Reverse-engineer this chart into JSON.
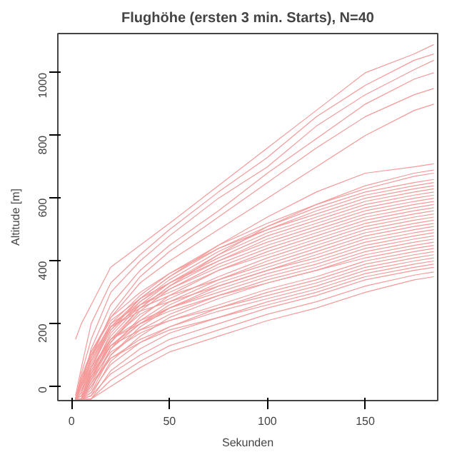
{
  "chart_data": {
    "type": "line",
    "title": "Flughöhe (ersten 3 min. Starts), N=40",
    "xlabel": "Sekunden",
    "ylabel": "Altitude [m]",
    "x": [
      2,
      5,
      10,
      20,
      35,
      50,
      75,
      100,
      125,
      150,
      175,
      185
    ],
    "xlim": [
      -7,
      187
    ],
    "ylim": [
      -45,
      1125
    ],
    "xticks": [
      0,
      50,
      100,
      150
    ],
    "yticks": [
      0,
      200,
      400,
      600,
      800,
      1000
    ],
    "grid": false,
    "line_style": "solid",
    "series": [
      {
        "color": "#f59a9a",
        "values": [
          150,
          200,
          260,
          380,
          450,
          520,
          640,
          760,
          880,
          1000,
          1060,
          1090
        ]
      },
      {
        "color": "#f59a9a",
        "values": [
          -30,
          60,
          200,
          330,
          420,
          500,
          620,
          730,
          860,
          960,
          1040,
          1060
        ]
      },
      {
        "color": "#f59a9a",
        "values": [
          -40,
          40,
          150,
          300,
          400,
          480,
          600,
          700,
          830,
          930,
          1010,
          1040
        ]
      },
      {
        "color": "#f59a9a",
        "values": [
          -40,
          0,
          120,
          260,
          370,
          450,
          560,
          680,
          790,
          900,
          980,
          1000
        ]
      },
      {
        "color": "#f59a9a",
        "values": [
          -40,
          -20,
          90,
          230,
          350,
          430,
          540,
          650,
          760,
          860,
          930,
          950
        ]
      },
      {
        "color": "#f59a9a",
        "values": [
          -40,
          20,
          110,
          220,
          330,
          400,
          500,
          600,
          700,
          800,
          880,
          900
        ]
      },
      {
        "color": "#f59a9a",
        "values": [
          -40,
          -40,
          60,
          180,
          280,
          350,
          450,
          540,
          620,
          680,
          700,
          710
        ]
      },
      {
        "color": "#f59a9a",
        "values": [
          -40,
          -30,
          30,
          140,
          250,
          320,
          420,
          510,
          580,
          640,
          680,
          690
        ]
      },
      {
        "color": "#f59a9a",
        "values": [
          -40,
          10,
          80,
          200,
          290,
          360,
          450,
          520,
          580,
          630,
          670,
          680
        ]
      },
      {
        "color": "#f59a9a",
        "values": [
          -40,
          -10,
          60,
          190,
          280,
          350,
          440,
          510,
          570,
          620,
          650,
          660
        ]
      },
      {
        "color": "#f59a9a",
        "values": [
          -40,
          -40,
          40,
          170,
          270,
          340,
          430,
          500,
          560,
          610,
          640,
          650
        ]
      },
      {
        "color": "#f59a9a",
        "values": [
          -40,
          20,
          100,
          220,
          300,
          360,
          440,
          500,
          550,
          600,
          630,
          640
        ]
      },
      {
        "color": "#f59a9a",
        "values": [
          -40,
          -40,
          50,
          160,
          260,
          330,
          420,
          490,
          540,
          590,
          620,
          630
        ]
      },
      {
        "color": "#f59a9a",
        "values": [
          -40,
          0,
          70,
          190,
          270,
          330,
          410,
          480,
          530,
          580,
          610,
          620
        ]
      },
      {
        "color": "#f59a9a",
        "values": [
          -40,
          -40,
          20,
          150,
          250,
          320,
          400,
          470,
          520,
          570,
          600,
          610
        ]
      },
      {
        "color": "#f59a9a",
        "values": [
          -40,
          30,
          110,
          210,
          280,
          330,
          400,
          460,
          510,
          560,
          590,
          600
        ]
      },
      {
        "color": "#f59a9a",
        "values": [
          -40,
          -40,
          30,
          140,
          240,
          310,
          390,
          450,
          500,
          550,
          580,
          590
        ]
      },
      {
        "color": "#f59a9a",
        "values": [
          -40,
          -20,
          60,
          180,
          260,
          310,
          380,
          440,
          490,
          540,
          570,
          580
        ]
      },
      {
        "color": "#f59a9a",
        "values": [
          -40,
          -40,
          -10,
          120,
          220,
          290,
          370,
          430,
          480,
          530,
          560,
          570
        ]
      },
      {
        "color": "#f59a9a",
        "values": [
          -40,
          10,
          90,
          200,
          260,
          300,
          370,
          420,
          470,
          520,
          550,
          560
        ]
      },
      {
        "color": "#f59a9a",
        "values": [
          -40,
          -40,
          40,
          150,
          230,
          280,
          350,
          410,
          460,
          510,
          540,
          550
        ]
      },
      {
        "color": "#f59a9a",
        "values": [
          -40,
          -30,
          20,
          130,
          210,
          270,
          340,
          400,
          450,
          500,
          530,
          540
        ]
      },
      {
        "color": "#f59a9a",
        "values": [
          -40,
          0,
          80,
          190,
          250,
          290,
          340,
          390,
          440,
          490,
          520,
          530
        ]
      },
      {
        "color": "#f59a9a",
        "values": [
          -40,
          -40,
          10,
          120,
          200,
          260,
          330,
          380,
          430,
          480,
          510,
          520
        ]
      },
      {
        "color": "#f59a9a",
        "values": [
          -40,
          -40,
          -20,
          100,
          190,
          250,
          320,
          370,
          420,
          470,
          500,
          510
        ]
      },
      {
        "color": "#f59a9a",
        "values": [
          -40,
          20,
          100,
          190,
          240,
          270,
          320,
          370,
          410,
          460,
          490,
          500
        ]
      },
      {
        "color": "#f59a9a",
        "values": [
          -40,
          -40,
          30,
          130,
          200,
          250,
          310,
          360,
          400,
          450,
          480,
          490
        ]
      },
      {
        "color": "#f59a9a",
        "values": [
          -40,
          -20,
          50,
          150,
          210,
          250,
          300,
          350,
          390,
          440,
          470,
          480
        ]
      },
      {
        "color": "#f59a9a",
        "values": [
          -40,
          -40,
          0,
          100,
          180,
          230,
          290,
          340,
          380,
          430,
          460,
          470
        ]
      },
      {
        "color": "#f59a9a",
        "values": [
          -40,
          -40,
          -30,
          80,
          160,
          220,
          280,
          330,
          370,
          420,
          450,
          460
        ]
      },
      {
        "color": "#f59a9a",
        "values": [
          -40,
          0,
          60,
          150,
          200,
          240,
          290,
          330,
          370,
          410,
          440,
          450
        ]
      },
      {
        "color": "#f59a9a",
        "values": [
          -40,
          -40,
          20,
          110,
          170,
          210,
          260,
          310,
          350,
          400,
          430,
          440
        ]
      },
      {
        "color": "#f59a9a",
        "values": [
          -40,
          -40,
          -20,
          70,
          140,
          190,
          250,
          300,
          340,
          390,
          420,
          430
        ]
      },
      {
        "color": "#f59a9a",
        "values": [
          -40,
          -30,
          40,
          130,
          180,
          210,
          250,
          290,
          330,
          380,
          410,
          420
        ]
      },
      {
        "color": "#f59a9a",
        "values": [
          -40,
          -40,
          0,
          90,
          150,
          190,
          240,
          280,
          320,
          370,
          400,
          410
        ]
      },
      {
        "color": "#f59a9a",
        "values": [
          -40,
          -40,
          -40,
          50,
          120,
          170,
          220,
          270,
          310,
          360,
          390,
          400
        ]
      },
      {
        "color": "#f59a9a",
        "values": [
          -40,
          -40,
          10,
          90,
          140,
          180,
          220,
          260,
          300,
          350,
          380,
          390
        ]
      },
      {
        "color": "#f59a9a",
        "values": [
          -40,
          -40,
          -30,
          40,
          100,
          150,
          200,
          250,
          290,
          340,
          370,
          380
        ]
      },
      {
        "color": "#f59a9a",
        "values": [
          -40,
          -40,
          -40,
          20,
          80,
          130,
          180,
          230,
          270,
          320,
          355,
          365
        ]
      },
      {
        "color": "#f59a9a",
        "values": [
          -40,
          -40,
          -40,
          0,
          60,
          110,
          160,
          210,
          250,
          300,
          340,
          350
        ]
      }
    ]
  }
}
